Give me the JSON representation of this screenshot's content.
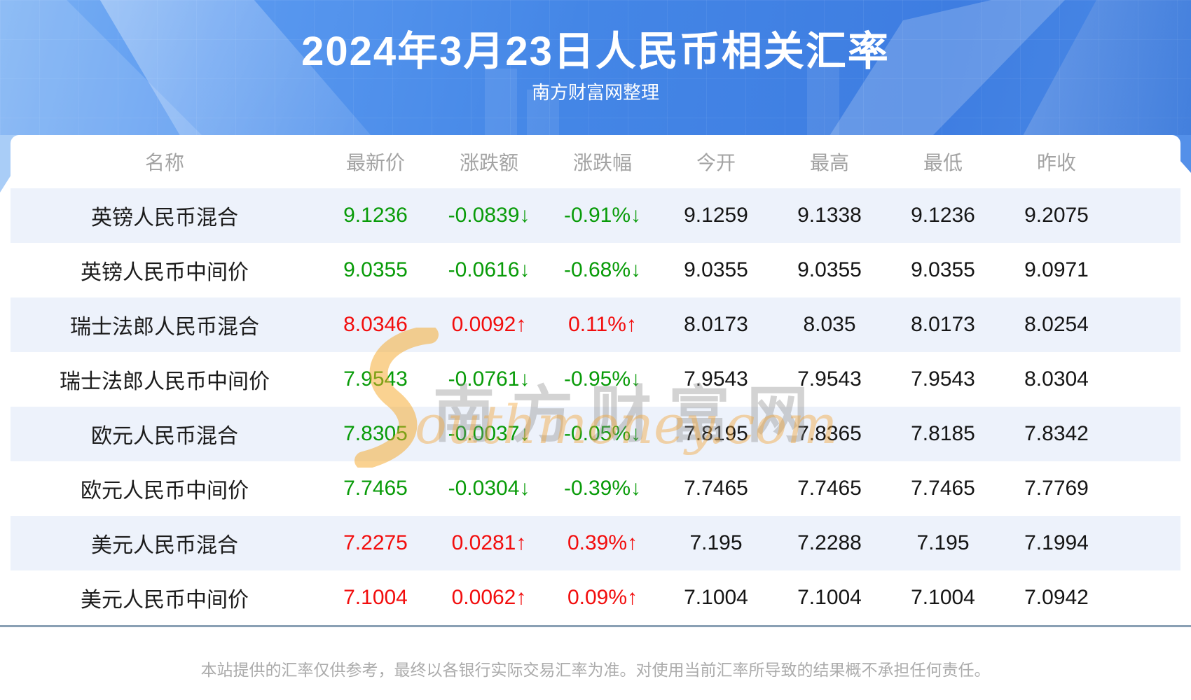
{
  "banner": {
    "title": "2024年3月23日人民币相关汇率",
    "subtitle": "南方财富网整理"
  },
  "chart_data": {
    "type": "table",
    "title": "2024年3月23日人民币相关汇率",
    "columns": [
      "名称",
      "最新价",
      "涨跌额",
      "涨跌幅",
      "今开",
      "最高",
      "最低",
      "昨收"
    ],
    "rows": [
      {
        "name": "英镑人民币混合",
        "last": "9.1236",
        "change": "-0.0839↓",
        "pct": "-0.91%↓",
        "open": "9.1259",
        "high": "9.1338",
        "low": "9.1236",
        "prev": "9.2075",
        "trend": "down"
      },
      {
        "name": "英镑人民币中间价",
        "last": "9.0355",
        "change": "-0.0616↓",
        "pct": "-0.68%↓",
        "open": "9.0355",
        "high": "9.0355",
        "low": "9.0355",
        "prev": "9.0971",
        "trend": "down"
      },
      {
        "name": "瑞士法郎人民币混合",
        "last": "8.0346",
        "change": "0.0092↑",
        "pct": "0.11%↑",
        "open": "8.0173",
        "high": "8.035",
        "low": "8.0173",
        "prev": "8.0254",
        "trend": "up"
      },
      {
        "name": "瑞士法郎人民币中间价",
        "last": "7.9543",
        "change": "-0.0761↓",
        "pct": "-0.95%↓",
        "open": "7.9543",
        "high": "7.9543",
        "low": "7.9543",
        "prev": "8.0304",
        "trend": "down"
      },
      {
        "name": "欧元人民币混合",
        "last": "7.8305",
        "change": "-0.0037↓",
        "pct": "-0.05%↓",
        "open": "7.8195",
        "high": "7.8365",
        "low": "7.8185",
        "prev": "7.8342",
        "trend": "down"
      },
      {
        "name": "欧元人民币中间价",
        "last": "7.7465",
        "change": "-0.0304↓",
        "pct": "-0.39%↓",
        "open": "7.7465",
        "high": "7.7465",
        "low": "7.7465",
        "prev": "7.7769",
        "trend": "down"
      },
      {
        "name": "美元人民币混合",
        "last": "7.2275",
        "change": "0.0281↑",
        "pct": "0.39%↑",
        "open": "7.195",
        "high": "7.2288",
        "low": "7.195",
        "prev": "7.1994",
        "trend": "up"
      },
      {
        "name": "美元人民币中间价",
        "last": "7.1004",
        "change": "0.0062↑",
        "pct": "0.09%↑",
        "open": "7.1004",
        "high": "7.1004",
        "low": "7.1004",
        "prev": "7.0942",
        "trend": "up"
      }
    ]
  },
  "watermark": {
    "cn": "南方财富网",
    "en": "outhmoney.com"
  },
  "footer": {
    "disclaimer": "本站提供的汇率仅供参考，最终以各银行实际交易汇率为准。对使用当前汇率所导致的结果概不承担任何责任。"
  },
  "colors": {
    "up_red": "#f20d0d",
    "down_green": "#089b08",
    "banner_blue": "#4486e6",
    "stripe_blue": "#edf2fb",
    "divider_gray_blue": "#8aa0b4",
    "watermark_orange": "#f4a330"
  }
}
